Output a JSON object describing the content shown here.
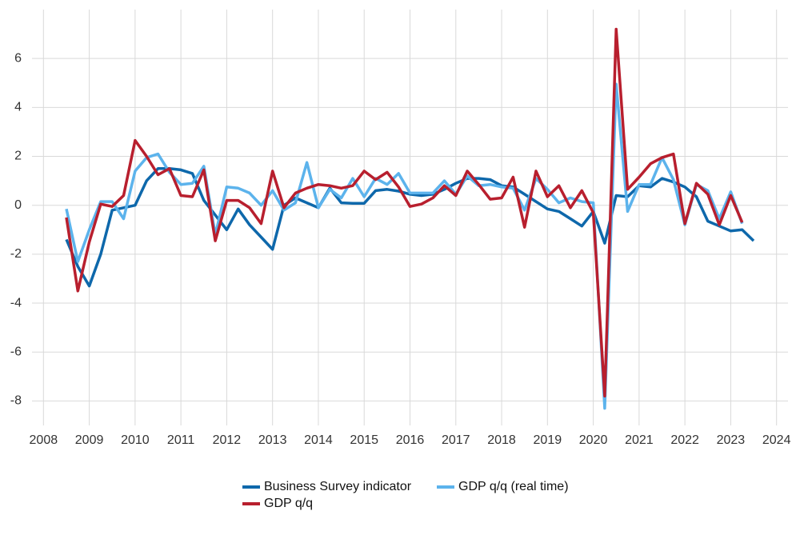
{
  "chart_data": {
    "type": "line",
    "x": [
      2008.5,
      2008.75,
      2009,
      2009.25,
      2009.5,
      2009.75,
      2010,
      2010.25,
      2010.5,
      2010.75,
      2011,
      2011.25,
      2011.5,
      2011.75,
      2012,
      2012.25,
      2012.5,
      2012.75,
      2013,
      2013.25,
      2013.5,
      2013.75,
      2014,
      2014.25,
      2014.5,
      2014.75,
      2015,
      2015.25,
      2015.5,
      2015.75,
      2016,
      2016.25,
      2016.5,
      2016.75,
      2017,
      2017.25,
      2017.5,
      2017.75,
      2018,
      2018.25,
      2018.5,
      2018.75,
      2019,
      2019.25,
      2019.5,
      2019.75,
      2020,
      2020.25,
      2020.5,
      2020.75,
      2021,
      2021.25,
      2021.5,
      2021.75,
      2022,
      2022.25,
      2022.5,
      2022.75,
      2023,
      2023.25,
      2023.5
    ],
    "series": [
      {
        "name": "Business Survey indicator",
        "color": "#0e68ab",
        "values": [
          -1.4,
          -2.5,
          -3.3,
          -2.0,
          -0.2,
          -0.1,
          0.0,
          1.0,
          1.5,
          1.5,
          1.45,
          1.3,
          0.2,
          -0.4,
          -1.0,
          -0.15,
          -0.8,
          -1.3,
          -1.8,
          0.0,
          0.3,
          0.1,
          -0.1,
          0.7,
          0.1,
          0.08,
          0.08,
          0.6,
          0.65,
          0.58,
          0.45,
          0.4,
          0.45,
          0.65,
          0.9,
          1.1,
          1.1,
          1.05,
          0.8,
          0.75,
          0.45,
          0.15,
          -0.15,
          -0.25,
          -0.55,
          -0.85,
          -0.25,
          -1.55,
          0.4,
          0.35,
          0.8,
          0.75,
          1.1,
          0.95,
          0.75,
          0.35,
          -0.65,
          -0.85,
          -1.05,
          -1.0,
          -1.45
        ]
      },
      {
        "name": "GDP q/q",
        "color": "#b81f2e",
        "values": [
          -0.5,
          -3.5,
          -1.5,
          0.05,
          -0.05,
          0.4,
          2.65,
          2.0,
          1.25,
          1.5,
          0.4,
          0.35,
          1.45,
          -1.45,
          0.2,
          0.2,
          -0.1,
          -0.75,
          1.4,
          -0.1,
          0.5,
          0.7,
          0.85,
          0.8,
          0.7,
          0.8,
          1.4,
          1.05,
          1.35,
          0.75,
          -0.05,
          0.05,
          0.3,
          0.8,
          0.4,
          1.4,
          0.85,
          0.25,
          0.3,
          1.15,
          -0.9,
          1.4,
          0.35,
          0.8,
          -0.1,
          0.6,
          -0.3,
          -7.8,
          7.2,
          0.65,
          1.15,
          1.7,
          1.95,
          2.1,
          -0.75,
          0.9,
          0.45,
          -0.8,
          0.4,
          -0.7,
          null
        ]
      },
      {
        "name": "GDP q/q (real time)",
        "color": "#5cb3ec",
        "values": [
          -0.15,
          -2.3,
          -1.0,
          0.15,
          0.15,
          -0.55,
          1.4,
          1.95,
          2.1,
          1.35,
          0.85,
          0.9,
          1.6,
          -1.2,
          0.75,
          0.7,
          0.5,
          0.0,
          0.6,
          -0.2,
          0.1,
          1.75,
          -0.1,
          0.65,
          0.3,
          1.1,
          0.35,
          1.1,
          0.85,
          1.3,
          0.5,
          0.5,
          0.5,
          1.0,
          0.45,
          1.2,
          0.8,
          0.85,
          0.75,
          0.7,
          -0.2,
          1.1,
          0.65,
          0.1,
          0.3,
          0.15,
          0.1,
          -8.3,
          4.95,
          -0.25,
          0.85,
          0.85,
          1.95,
          1.05,
          -0.8,
          0.85,
          0.6,
          -0.55,
          0.55,
          -0.75,
          null
        ]
      }
    ],
    "xlim": [
      2007.75,
      2024.25
    ],
    "xticks": [
      2008,
      2009,
      2010,
      2011,
      2012,
      2013,
      2014,
      2015,
      2016,
      2017,
      2018,
      2019,
      2020,
      2021,
      2022,
      2023,
      2024
    ],
    "ylim": [
      -9,
      8
    ],
    "yticks": [
      -8,
      -6,
      -4,
      -2,
      0,
      2,
      4,
      6
    ],
    "grid": true,
    "legend": "bottom"
  }
}
